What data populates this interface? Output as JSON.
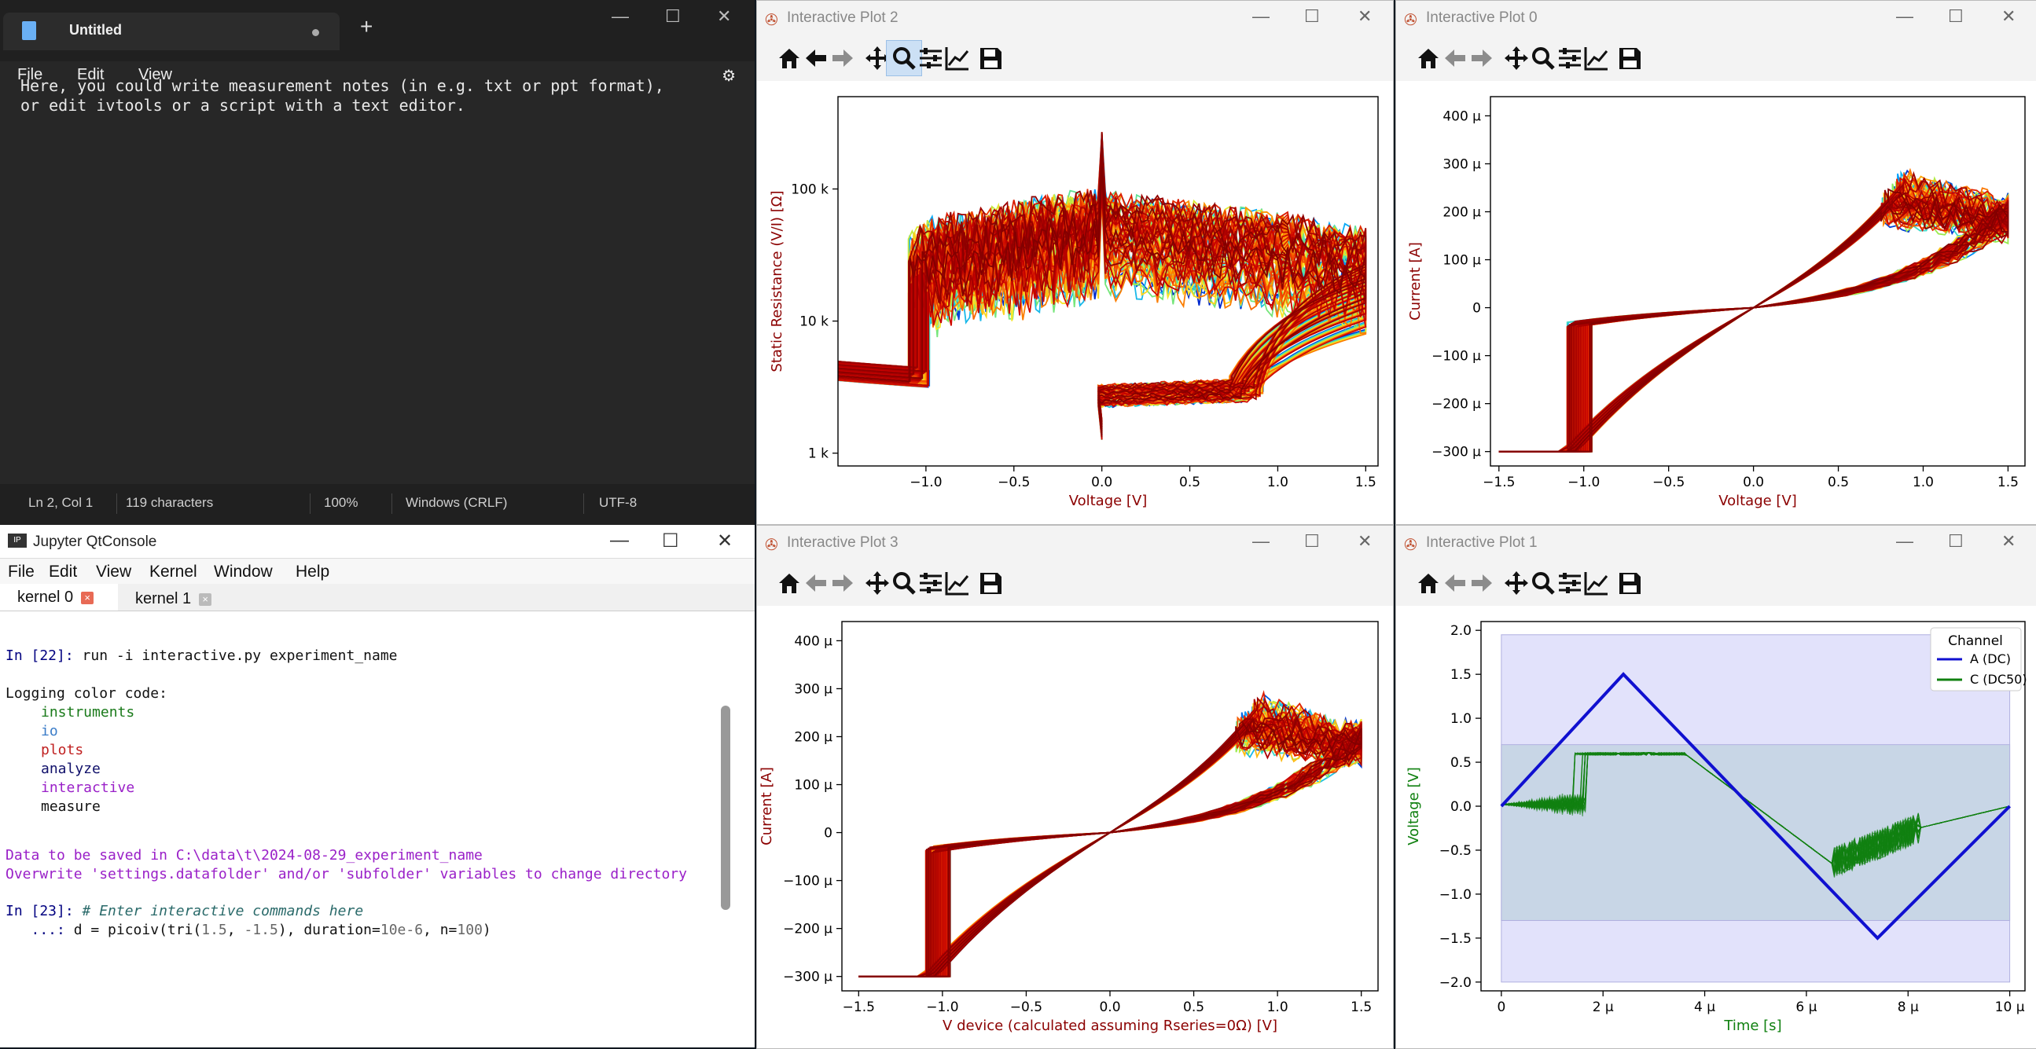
{
  "notepad": {
    "tab_title": "Untitled",
    "menu": [
      "File",
      "Edit",
      "View"
    ],
    "content_line1": "Here, you could write measurement notes (in e.g. txt or ppt format),",
    "content_line2": "or edit ivtools or a script with a text editor.",
    "status": {
      "position": "Ln 2, Col 1",
      "chars": "119 characters",
      "zoom": "100%",
      "eol": "Windows (CRLF)",
      "encoding": "UTF-8"
    }
  },
  "jupyter": {
    "title": "Jupyter QtConsole",
    "menu": [
      "File",
      "Edit",
      "View",
      "Kernel",
      "Window",
      "Help"
    ],
    "tabs": [
      "kernel 0",
      "kernel 1"
    ],
    "lines": {
      "in22_prompt": "In [22]:",
      "in22_cmd": " run -i interactive.py experiment_name",
      "color_code": "Logging color code:",
      "cc": [
        "instruments",
        "io",
        "plots",
        "analyze",
        "interactive",
        "measure"
      ],
      "saved": "Data to be saved in C:\\data\\t\\2024-08-29_experiment_name",
      "overwrite": "Overwrite 'settings.datafolder' and/or 'subfolder' variables to change directory",
      "in23_prompt": "In [23]:",
      "in23_comment": " # Enter interactive commands here",
      "cont_prompt": "   ...:",
      "cont_cmd_a": " d = picoiv(tri(",
      "cont_n1": "1.5",
      "cont_comma": ", ",
      "cont_n2": "-1.5",
      "cont_cmd_b": "), duration=",
      "cont_n3": "10e-6",
      "cont_cmd_c": ", n=",
      "cont_n4": "100",
      "cont_cmd_d": ")"
    }
  },
  "plots": {
    "p2": {
      "title": "Interactive Plot 2"
    },
    "p0": {
      "title": "Interactive Plot 0"
    },
    "p3": {
      "title": "Interactive Plot 3"
    },
    "p1": {
      "title": "Interactive Plot 1"
    }
  },
  "chart_data": [
    {
      "type": "line",
      "id": "plot2",
      "xlabel": "Voltage [V]",
      "ylabel": "Static Resistance (V/I) [Ω]",
      "yscale": "log",
      "xlim": [
        -1.5,
        1.57
      ],
      "ylim": [
        800,
        500000
      ],
      "xticks": [
        -1.0,
        -0.5,
        0.0,
        0.5,
        1.0,
        1.5
      ],
      "xticklabels": [
        "−1.0",
        "−0.5",
        "0.0",
        "0.5",
        "1.0",
        "1.5"
      ],
      "yticks": [
        1000,
        10000,
        100000
      ],
      "yticklabels": [
        "1 k",
        "10 k",
        "100 k"
      ],
      "series_count": 100,
      "colormap": "jet-to-darkred",
      "representative": {
        "v_set": -1.05,
        "v_reset": 0.9,
        "lrs_ohm": 2700,
        "hrs_ohm": 40000
      }
    },
    {
      "type": "line",
      "id": "plot0",
      "xlabel": "Voltage [V]",
      "ylabel": "Current [A]",
      "xlim": [
        -1.55,
        1.6
      ],
      "ylim": [
        -330,
        440
      ],
      "xticks": [
        -1.5,
        -1.0,
        -0.5,
        0.0,
        0.5,
        1.0,
        1.5
      ],
      "xticklabels": [
        "−1.5",
        "−1.0",
        "−0.5",
        "0.0",
        "0.5",
        "1.0",
        "1.5"
      ],
      "yticks": [
        -300,
        -200,
        -100,
        0,
        100,
        200,
        300,
        400
      ],
      "yticklabels": [
        "−300 μ",
        "−200 μ",
        "−100 μ",
        "0",
        "100 μ",
        "200 μ",
        "300 μ",
        "400 μ"
      ],
      "series_count": 100,
      "compliance_uA": -300
    },
    {
      "type": "line",
      "id": "plot3",
      "xlabel": "V device (calculated assuming Rseries=0Ω) [V]",
      "ylabel": "Current [A]",
      "xlim": [
        -1.6,
        1.6
      ],
      "ylim": [
        -330,
        440
      ],
      "xticks": [
        -1.5,
        -1.0,
        -0.5,
        0.0,
        0.5,
        1.0,
        1.5
      ],
      "xticklabels": [
        "−1.5",
        "−1.0",
        "−0.5",
        "0.0",
        "0.5",
        "1.0",
        "1.5"
      ],
      "yticks": [
        -300,
        -200,
        -100,
        0,
        100,
        200,
        300,
        400
      ],
      "yticklabels": [
        "−300 μ",
        "−200 μ",
        "−100 μ",
        "0",
        "100 μ",
        "200 μ",
        "300 μ",
        "400 μ"
      ],
      "series_count": 100
    },
    {
      "type": "line",
      "id": "plot1",
      "xlabel": "Time [s]",
      "ylabel": "Voltage [V]",
      "xlim": [
        -0.4,
        10.3
      ],
      "ylim": [
        -2.1,
        2.1
      ],
      "xticks": [
        0,
        2,
        4,
        6,
        8,
        10
      ],
      "xticklabels": [
        "0",
        "2 μ",
        "4 μ",
        "6 μ",
        "8 μ",
        "10 μ"
      ],
      "yticks": [
        -2.0,
        -1.5,
        -1.0,
        -0.5,
        0.0,
        0.5,
        1.0,
        1.5,
        2.0
      ],
      "yticklabels": [
        "−2.0",
        "−1.5",
        "−1.0",
        "−0.5",
        "0.0",
        "0.5",
        "1.0",
        "1.5",
        "2.0"
      ],
      "legend_title": "Channel",
      "legend_position": "top-right",
      "series": [
        {
          "name": "A (DC)",
          "color": "#1010d0",
          "x": [
            0,
            2.4,
            7.4,
            10
          ],
          "y": [
            0,
            1.5,
            -1.5,
            0
          ]
        },
        {
          "name": "C (DC50)",
          "color": "#108010",
          "x": [
            0,
            1.5,
            1.7,
            3.6,
            5,
            6.5,
            8,
            10
          ],
          "y": [
            0,
            0.02,
            0.6,
            0.6,
            -0.05,
            -0.65,
            -0.4,
            0
          ]
        }
      ],
      "bands": [
        {
          "ymin": -2.0,
          "ymax": 1.95,
          "color": "#e2e2fb"
        },
        {
          "ymin": -1.3,
          "ymax": 0.7,
          "color": "#c8d6e6"
        }
      ]
    }
  ]
}
